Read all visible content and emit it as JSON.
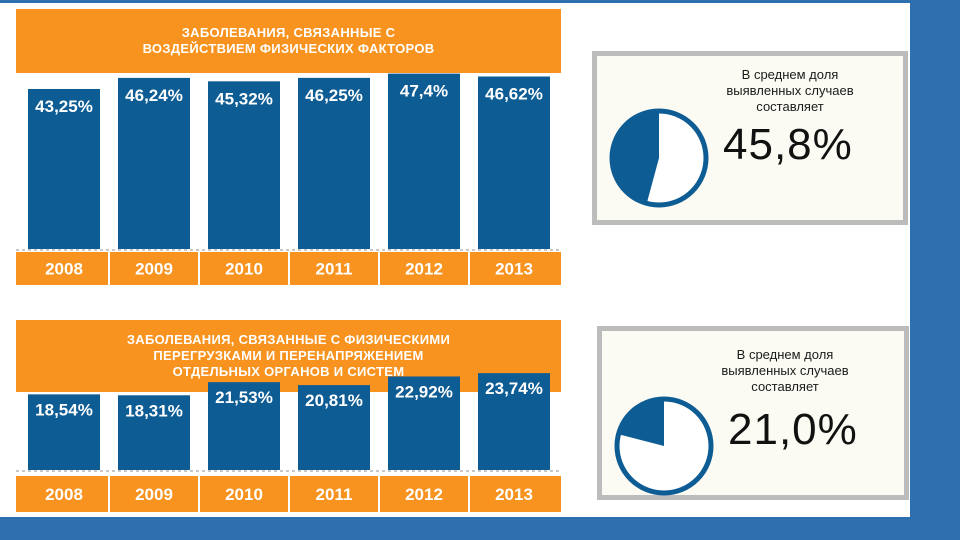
{
  "chart_data": [
    {
      "type": "bar",
      "title": "ЗАБОЛЕВАНИЯ, СВЯЗАННЫЕ С ВОЗДЕЙСТВИЕМ ФИЗИЧЕСКИХ ФАКТОРОВ",
      "title_lines": [
        "ЗАБОЛЕВАНИЯ, СВЯЗАННЫЕ С",
        "ВОЗДЕЙСТВИЕМ ФИЗИЧЕСКИХ ФАКТОРОВ"
      ],
      "categories": [
        "2008",
        "2009",
        "2010",
        "2011",
        "2012",
        "2013"
      ],
      "values": [
        43.25,
        46.24,
        45.32,
        46.25,
        47.4,
        46.62
      ],
      "labels": [
        "43,25%",
        "46,24%",
        "45,32%",
        "46,25%",
        "47,4%",
        "46,62%"
      ],
      "unit": "%",
      "ylim": [
        0,
        50
      ],
      "bar_color": "#0e5c94",
      "category_band_color": "#f7931e"
    },
    {
      "type": "bar",
      "title": "ЗАБОЛЕВАНИЯ, СВЯЗАННЫЕ С ФИЗИЧЕСКИМИ ПЕРЕГРУЗКАМИ И ПЕРЕНАПРЯЖЕНИЕМ ОТДЕЛЬНЫХ ОРГАНОВ И СИСТЕМ",
      "title_lines": [
        "ЗАБОЛЕВАНИЯ, СВЯЗАННЫЕ С ФИЗИЧЕСКИМИ",
        "ПЕРЕГРУЗКАМИ И ПЕРЕНАПРЯЖЕНИЕМ",
        "ОТДЕЛЬНЫХ ОРГАНОВ И СИСТЕМ"
      ],
      "categories": [
        "2008",
        "2009",
        "2010",
        "2011",
        "2012",
        "2013"
      ],
      "values": [
        18.54,
        18.31,
        21.53,
        20.81,
        22.92,
        23.74
      ],
      "labels": [
        "18,54%",
        "18,31%",
        "21,53%",
        "20,81%",
        "22,92%",
        "23,74%"
      ],
      "unit": "%",
      "ylim": [
        0,
        25
      ],
      "bar_color": "#0e5c94",
      "category_band_color": "#f7931e"
    },
    {
      "type": "pie",
      "caption_lines": [
        "В среднем доля",
        "выявленных случаев",
        "составляет"
      ],
      "value": 45.8,
      "value_label": "45,8%",
      "color": "#0e5c94"
    },
    {
      "type": "pie",
      "caption_lines": [
        "В среднем доля",
        "выявленных случаев",
        "составляет"
      ],
      "value": 21.0,
      "value_label": "21,0%",
      "color": "#0e5c94"
    }
  ],
  "colors": {
    "background": "#2e6faf",
    "orange": "#f7931e",
    "bar": "#0e5c94",
    "box_border": "#bcbcbc",
    "box_fill": "#fbfbf3"
  }
}
